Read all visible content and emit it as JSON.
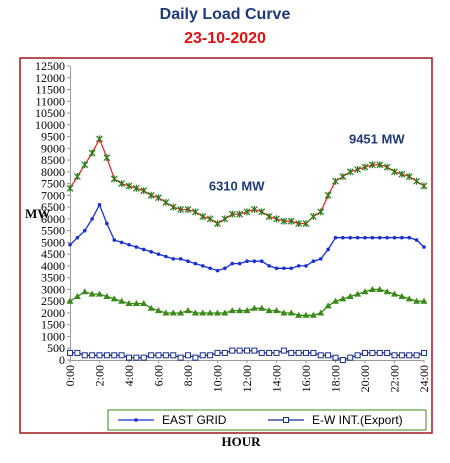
{
  "header": {
    "title": "Daily Load Curve",
    "date": "23-10-2020"
  },
  "chart_data": {
    "type": "line",
    "title": "Daily Load Curve",
    "subtitle": "23-10-2020",
    "xlabel": "HOUR",
    "ylabel": "MW",
    "ylim": [
      0,
      12500
    ],
    "ytick_step": 500,
    "xlim": [
      0,
      24
    ],
    "xtick_labels": [
      "0:00",
      "2:00",
      "4:00",
      "6:00",
      "8:00",
      "10:00",
      "12:00",
      "14:00",
      "16:00",
      "18:00",
      "20:00",
      "22:00",
      "24:00"
    ],
    "grid": false,
    "legend_position": "bottom",
    "x": [
      0,
      0.5,
      1,
      1.5,
      2,
      2.5,
      3,
      3.5,
      4,
      4.5,
      5,
      5.5,
      6,
      6.5,
      7,
      7.5,
      8,
      8.5,
      9,
      9.5,
      10,
      10.5,
      11,
      11.5,
      12,
      12.5,
      13,
      13.5,
      14,
      14.5,
      15,
      15.5,
      16,
      16.5,
      17,
      17.5,
      18,
      18.5,
      19,
      19.5,
      20,
      20.5,
      21,
      21.5,
      22,
      22.5,
      23,
      23.5,
      24
    ],
    "series": [
      {
        "color": "#e03030",
        "marker": "star",
        "values": [
          7300,
          7800,
          8300,
          8800,
          9400,
          8600,
          7700,
          7500,
          7400,
          7300,
          7200,
          7000,
          6900,
          6700,
          6500,
          6400,
          6400,
          6300,
          6100,
          6000,
          5800,
          6000,
          6200,
          6200,
          6300,
          6400,
          6300,
          6100,
          6000,
          5900,
          5900,
          5800,
          5800,
          6100,
          6300,
          7000,
          7600,
          7800,
          8000,
          8100,
          8200,
          8300,
          8300,
          8200,
          8000,
          7900,
          7800,
          7600,
          7400
        ]
      },
      {
        "name": "EAST GRID",
        "color": "#1a2fd6",
        "marker": "dot",
        "values": [
          4900,
          5200,
          5500,
          6000,
          6600,
          5800,
          5100,
          5000,
          4900,
          4800,
          4700,
          4600,
          4500,
          4400,
          4300,
          4300,
          4200,
          4100,
          4000,
          3900,
          3800,
          3900,
          4100,
          4100,
          4200,
          4200,
          4200,
          4000,
          3900,
          3900,
          3900,
          4000,
          4000,
          4200,
          4300,
          4700,
          5200,
          5200,
          5200,
          5200,
          5200,
          5200,
          5200,
          5200,
          5200,
          5200,
          5200,
          5100,
          4800
        ]
      },
      {
        "color": "#3a8a1a",
        "marker": "triangle",
        "values": [
          2500,
          2700,
          2900,
          2800,
          2800,
          2700,
          2600,
          2500,
          2400,
          2400,
          2400,
          2200,
          2100,
          2000,
          2000,
          2000,
          2100,
          2000,
          2000,
          2000,
          2000,
          2000,
          2100,
          2100,
          2100,
          2200,
          2200,
          2100,
          2100,
          2000,
          2000,
          1900,
          1900,
          1900,
          2000,
          2300,
          2500,
          2600,
          2700,
          2800,
          2900,
          3000,
          3000,
          2900,
          2800,
          2700,
          2600,
          2500,
          2500
        ]
      },
      {
        "name": "E-W INT.(Export)",
        "color": "#1a2f8a",
        "marker": "square",
        "values": [
          300,
          300,
          200,
          200,
          200,
          200,
          200,
          200,
          100,
          100,
          100,
          200,
          200,
          200,
          200,
          100,
          200,
          100,
          200,
          200,
          300,
          300,
          400,
          400,
          400,
          400,
          300,
          300,
          300,
          400,
          300,
          300,
          300,
          300,
          200,
          200,
          100,
          0,
          100,
          200,
          300,
          300,
          300,
          300,
          200,
          200,
          200,
          200,
          300
        ]
      }
    ],
    "annotations": [
      {
        "text": "6310 MW",
        "x": 11.3,
        "y": 7200
      },
      {
        "text": "9451 MW",
        "x": 20.8,
        "y": 9200
      }
    ]
  }
}
